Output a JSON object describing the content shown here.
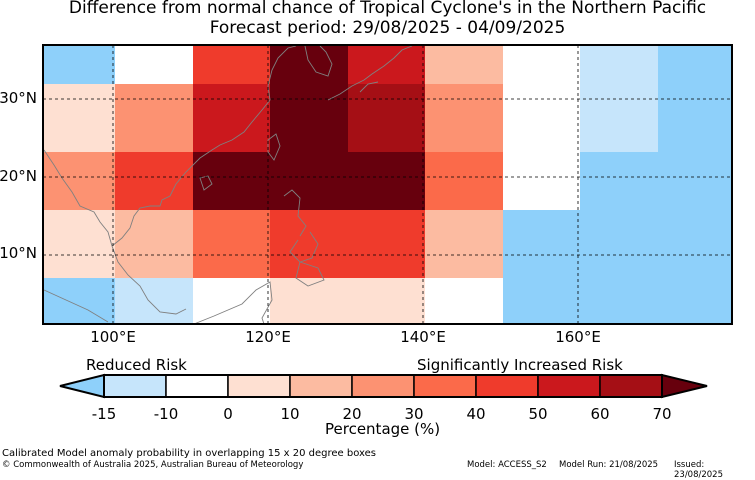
{
  "title": {
    "line1": "Difference from normal chance of Tropical Cyclone's in the Northern Pacific",
    "line2": "Forecast period: 29/08/2025 - 04/09/2025"
  },
  "map": {
    "lat_labels": [
      "30°N",
      "20°N",
      "10°N"
    ],
    "lon_labels": [
      "100°E",
      "120°E",
      "140°E",
      "160°E"
    ],
    "grid_colors": [
      [
        "#8ed0fa",
        "#ffffff",
        "#ef3b2c",
        "#67000d",
        "#cb181d",
        "#fcbba1",
        "#ffffff",
        "#c6e5fb",
        "#8ed0fa"
      ],
      [
        "#fee0d2",
        "#fc9272",
        "#cb181d",
        "#67000d",
        "#a50f15",
        "#fc9272",
        "#ffffff",
        "#c6e5fb",
        "#8ed0fa"
      ],
      [
        "#fc9272",
        "#ef3b2c",
        "#67000d",
        "#67000d",
        "#67000d",
        "#fb6a4a",
        "#ffffff",
        "#8ed0fa",
        "#8ed0fa"
      ],
      [
        "#fee0d2",
        "#fcbba1",
        "#fb6a4a",
        "#ef3b2c",
        "#ef3b2c",
        "#fcbba1",
        "#8ed0fa",
        "#8ed0fa",
        "#8ed0fa"
      ],
      [
        "#8ed0fa",
        "#c6e5fb",
        "#ffffff",
        "#fee0d2",
        "#fee0d2",
        "#ffffff",
        "#8ed0fa",
        "#8ed0fa",
        "#8ed0fa"
      ]
    ]
  },
  "colorbar": {
    "left_label": "Reduced Risk",
    "right_label": "Significantly Increased Risk",
    "xlabel": "Percentage (%)",
    "ticks": [
      "-15",
      "-10",
      "0",
      "10",
      "20",
      "30",
      "40",
      "50",
      "60",
      "70"
    ],
    "colors": [
      "#c6e5fb",
      "#ffffff",
      "#fee0d2",
      "#fcbba1",
      "#fc9272",
      "#fb6a4a",
      "#ef3b2c",
      "#cb181d",
      "#a50f15"
    ],
    "under_color": "#8ed0fa",
    "over_color": "#67000d"
  },
  "footer": {
    "note": "Calibrated Model anomaly probability in overlapping 15 x 20 degree boxes",
    "copyright": "© Commonwealth of Australia 2025, Australian Bureau of Meteorology",
    "model": "Model: ACCESS_S2",
    "run": "Model Run: 21/08/2025",
    "issued": "Issued: 23/08/2025"
  }
}
